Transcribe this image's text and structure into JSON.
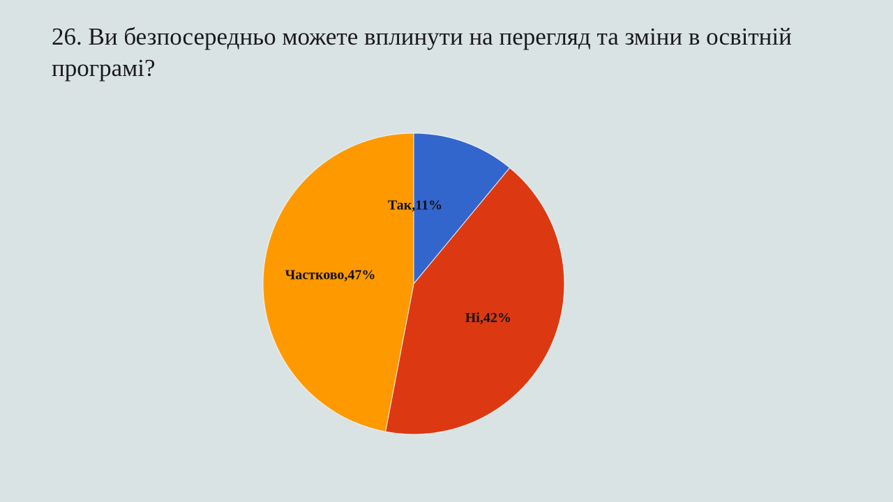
{
  "slide": {
    "title": "26. Ви безпосередньо можете вплинути на перегляд та зміни в освітній програмі?"
  },
  "chart_data": {
    "type": "pie",
    "title": "",
    "categories": [
      "Так",
      "Ні",
      "Частково"
    ],
    "values": [
      11,
      42,
      47
    ],
    "unit": "%",
    "labels": [
      "Так,11%",
      "Ні,42%",
      "Частково,47%"
    ],
    "colors": [
      "#3366cc",
      "#dc3912",
      "#ff9900"
    ],
    "start": "12 o'clock",
    "direction": "clockwise",
    "legend": "none"
  }
}
